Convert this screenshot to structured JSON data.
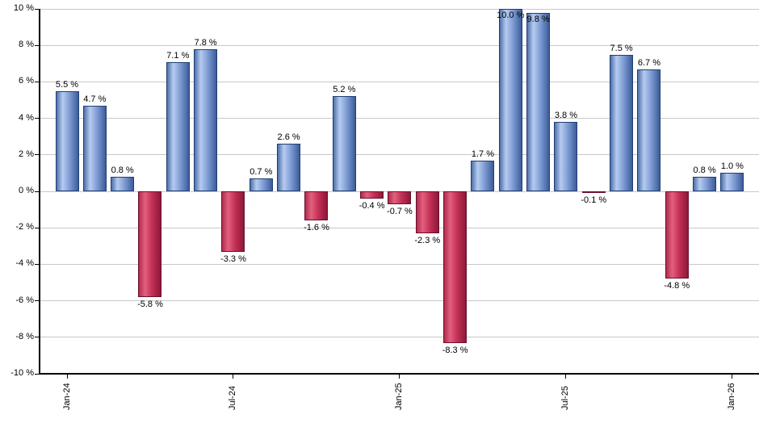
{
  "chart_data": {
    "type": "bar",
    "title": "",
    "xlabel": "",
    "ylabel": "",
    "values": [
      5.5,
      4.7,
      0.8,
      -5.8,
      7.1,
      7.8,
      -3.3,
      0.7,
      2.6,
      -1.6,
      5.2,
      -0.4,
      -0.7,
      -2.3,
      -8.3,
      1.7,
      10.0,
      9.8,
      3.8,
      -0.1,
      7.5,
      6.7,
      -4.8,
      0.8,
      1.0
    ],
    "bar_labels": [
      "5.5 %",
      "4.7 %",
      "0.8 %",
      "-5.8 %",
      "7.1 %",
      "7.8 %",
      "-3.3 %",
      "0.7 %",
      "2.6 %",
      "-1.6 %",
      "5.2 %",
      "-0.4 %",
      "-0.7 %",
      "-2.3 %",
      "-8.3 %",
      "1.7 %",
      "10.0 %",
      "9.8 %",
      "3.8 %",
      "-0.1 %",
      "7.5 %",
      "6.7 %",
      "-4.8 %",
      "0.8 %",
      "1.0 %"
    ],
    "y_axis": {
      "max": 10,
      "min": -10,
      "tick_step": 2,
      "tick_labels": [
        "10 %",
        "8 %",
        "6 %",
        "4 %",
        "2 %",
        "0 %",
        "-2 %",
        "-4 %",
        "-6 %",
        "-8 %",
        "-10 %"
      ]
    },
    "x_axis": {
      "ticks": [
        {
          "index": 0,
          "label": "Jan-24"
        },
        {
          "index": 6,
          "label": "Jul-24"
        },
        {
          "index": 12,
          "label": "Jan-25"
        },
        {
          "index": 18,
          "label": "Jul-25"
        },
        {
          "index": 24,
          "label": "Jan-26"
        }
      ]
    },
    "grid": true,
    "legend": "none",
    "colors": {
      "positive_gradient": [
        "#4c70a8",
        "#b7cbf0",
        "#7e9cd4",
        "#3c5c98"
      ],
      "positive_border": "#1e3f73",
      "negative_gradient": [
        "#b02b4e",
        "#e2607e",
        "#c43056",
        "#8c1838"
      ],
      "negative_border": "#6b102d",
      "gridline": "#c8c8c8",
      "axis": "#000000",
      "label_text": "#000000",
      "background": "#ffffff"
    }
  }
}
